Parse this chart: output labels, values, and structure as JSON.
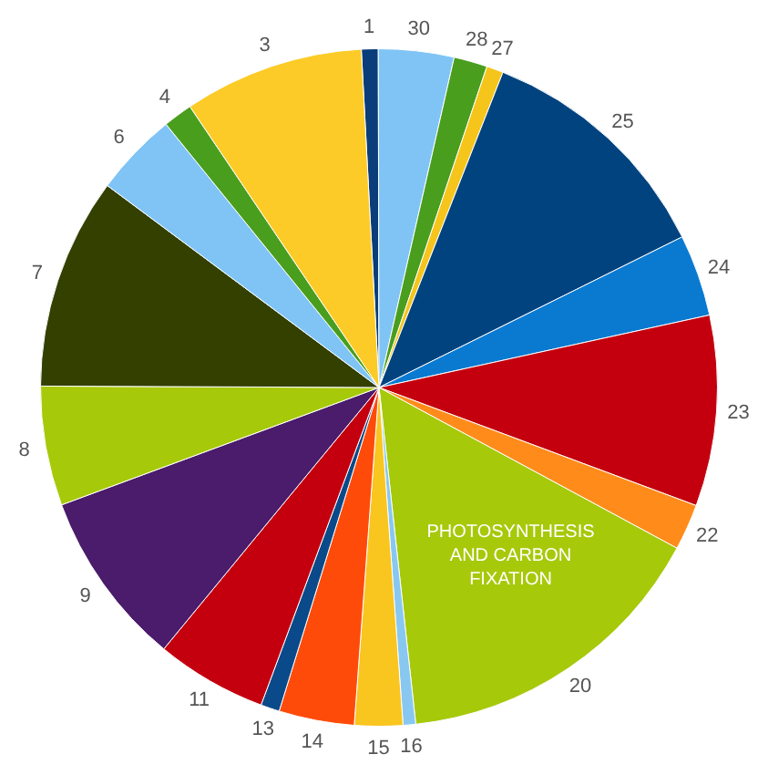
{
  "chart_data": {
    "type": "pie",
    "categories": [
      "1",
      "30",
      "28",
      "27",
      "25",
      "24",
      "23",
      "22",
      "20",
      "16",
      "15",
      "14",
      "13",
      "11",
      "9",
      "8",
      "7",
      "6",
      "4",
      "3"
    ],
    "values": [
      0.8,
      3.6,
      1.6,
      0.8,
      11.7,
      3.9,
      9.1,
      2.2,
      15.4,
      0.6,
      2.3,
      3.6,
      0.9,
      5.3,
      8.4,
      5.7,
      10.1,
      4.0,
      1.4,
      8.6
    ],
    "colors": [
      "#0a3d7a",
      "#7fc4f5",
      "#4a9e1e",
      "#f5c51c",
      "#00437f",
      "#0a7ad0",
      "#c4000f",
      "#ff8c1a",
      "#a6c90a",
      "#88c8f0",
      "#f9c51f",
      "#ff4b0a",
      "#0a4a8a",
      "#c4000f",
      "#4a1c6b",
      "#a6c90a",
      "#334000",
      "#7fc4f5",
      "#4a9e1e",
      "#fccb27"
    ],
    "annotations": [
      {
        "text": "PHOTOSYNTHESIS AND CARBON FIXATION",
        "x": "20"
      }
    ],
    "legend": false
  }
}
